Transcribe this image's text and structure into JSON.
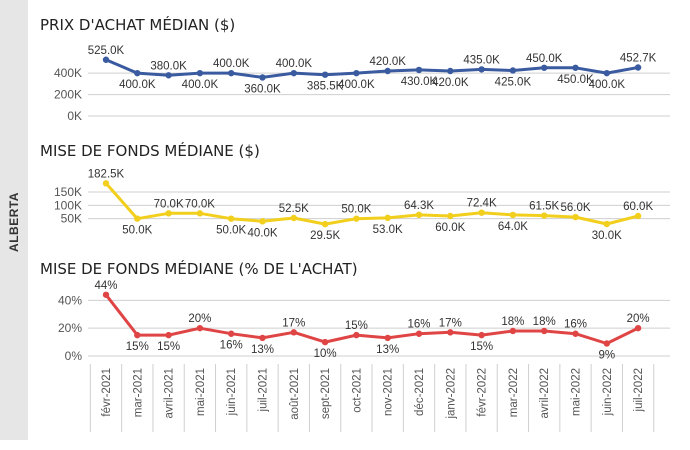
{
  "colors": {
    "series1": "#3a5ba0",
    "series2": "#f2cf1d",
    "series3": "#e04545",
    "grid": "#cfcfcf",
    "axis_text": "#555555",
    "label_text": "#333333",
    "side_band": "#e6e6e6"
  },
  "side_label": "ALBERTA",
  "x_categories": [
    "févr-2021",
    "mar-2021",
    "avril-2021",
    "mai-2021",
    "juin-2021",
    "juil-2021",
    "août-2021",
    "sept-2021",
    "oct-2021",
    "nov-2021",
    "déc-2021",
    "janv-2022",
    "févr-2022",
    "mar-2022",
    "avril-2022",
    "mai-2022",
    "juin-2022",
    "juil-2022"
  ],
  "chart_data": [
    {
      "type": "line",
      "title": "PRIX D'ACHAT MÉDIAN ($)",
      "categories": [
        "févr-2021",
        "mar-2021",
        "avril-2021",
        "mai-2021",
        "juin-2021",
        "juil-2021",
        "août-2021",
        "sept-2021",
        "oct-2021",
        "nov-2021",
        "déc-2021",
        "janv-2022",
        "févr-2022",
        "mar-2022",
        "avril-2022",
        "mai-2022",
        "juin-2022",
        "juil-2022"
      ],
      "values": [
        525000,
        400000,
        380000,
        400000,
        400000,
        360000,
        400000,
        385500,
        400000,
        420000,
        430000,
        420000,
        435000,
        425000,
        450000,
        450000,
        400000,
        452700
      ],
      "data_labels": [
        "525.0K",
        "400.0K",
        "380.0K",
        "400.0K",
        "400.0K",
        "360.0K",
        "400.0K",
        "385.5K",
        "400.0K",
        "420.0K",
        "430.0K",
        "420.0K",
        "435.0K",
        "425.0K",
        "450.0K",
        "450.0K",
        "400.0K",
        "452.7K"
      ],
      "label_positions": [
        "above",
        "below",
        "above",
        "below",
        "above",
        "below",
        "above",
        "below",
        "below",
        "above",
        "below",
        "below",
        "above",
        "below",
        "above",
        "below",
        "below",
        "above"
      ],
      "yticks": [
        0,
        200000,
        400000
      ],
      "ytick_labels": [
        "0K",
        "200K",
        "400K"
      ],
      "ylim": [
        0,
        560000
      ],
      "grid": true
    },
    {
      "type": "line",
      "title": "MISE DE FONDS MÉDIANE ($)",
      "categories": [
        "févr-2021",
        "mar-2021",
        "avril-2021",
        "mai-2021",
        "juin-2021",
        "juil-2021",
        "août-2021",
        "sept-2021",
        "oct-2021",
        "nov-2021",
        "déc-2021",
        "janv-2022",
        "févr-2022",
        "mar-2022",
        "avril-2022",
        "mai-2022",
        "juin-2022",
        "juil-2022"
      ],
      "values": [
        182500,
        50000,
        70000,
        70000,
        50000,
        40000,
        52500,
        29500,
        50000,
        53000,
        64300,
        60000,
        72400,
        64000,
        61500,
        56000,
        30000,
        60000
      ],
      "data_labels": [
        "182.5K",
        "50.0K",
        "70.0K",
        "70.0K",
        "50.0K",
        "40.0K",
        "52.5K",
        "29.5K",
        "50.0K",
        "53.0K",
        "64.3K",
        "60.0K",
        "72.4K",
        "64.0K",
        "61.5K",
        "56.0K",
        "30.0K",
        "60.0K"
      ],
      "label_positions": [
        "above",
        "below",
        "above",
        "above",
        "below",
        "below",
        "above",
        "below",
        "above",
        "below",
        "above",
        "below",
        "above",
        "below",
        "above",
        "above",
        "below",
        "above"
      ],
      "yticks": [
        50000,
        100000,
        150000
      ],
      "ytick_labels": [
        "50K",
        "100K",
        "150K"
      ],
      "ylim": [
        0,
        195000
      ],
      "grid": true
    },
    {
      "type": "line",
      "title": "MISE DE FONDS MÉDIANE (% DE L'ACHAT)",
      "categories": [
        "févr-2021",
        "mar-2021",
        "avril-2021",
        "mai-2021",
        "juin-2021",
        "juil-2021",
        "août-2021",
        "sept-2021",
        "oct-2021",
        "nov-2021",
        "déc-2021",
        "janv-2022",
        "févr-2022",
        "mar-2022",
        "avril-2022",
        "mai-2022",
        "juin-2022",
        "juil-2022"
      ],
      "values": [
        44,
        15,
        15,
        20,
        16,
        13,
        17,
        10,
        15,
        13,
        16,
        17,
        15,
        18,
        18,
        16,
        9,
        20
      ],
      "data_labels": [
        "44%",
        "15%",
        "15%",
        "20%",
        "16%",
        "13%",
        "17%",
        "10%",
        "15%",
        "13%",
        "16%",
        "17%",
        "15%",
        "18%",
        "18%",
        "16%",
        "9%",
        "20%"
      ],
      "label_positions": [
        "above",
        "below",
        "below",
        "above",
        "below",
        "below",
        "above",
        "below",
        "above",
        "below",
        "above",
        "above",
        "below",
        "above",
        "above",
        "above",
        "below",
        "above"
      ],
      "yticks": [
        0,
        20,
        40
      ],
      "ytick_labels": [
        "0%",
        "20%",
        "40%"
      ],
      "ylim": [
        0,
        46
      ],
      "grid": true
    }
  ]
}
